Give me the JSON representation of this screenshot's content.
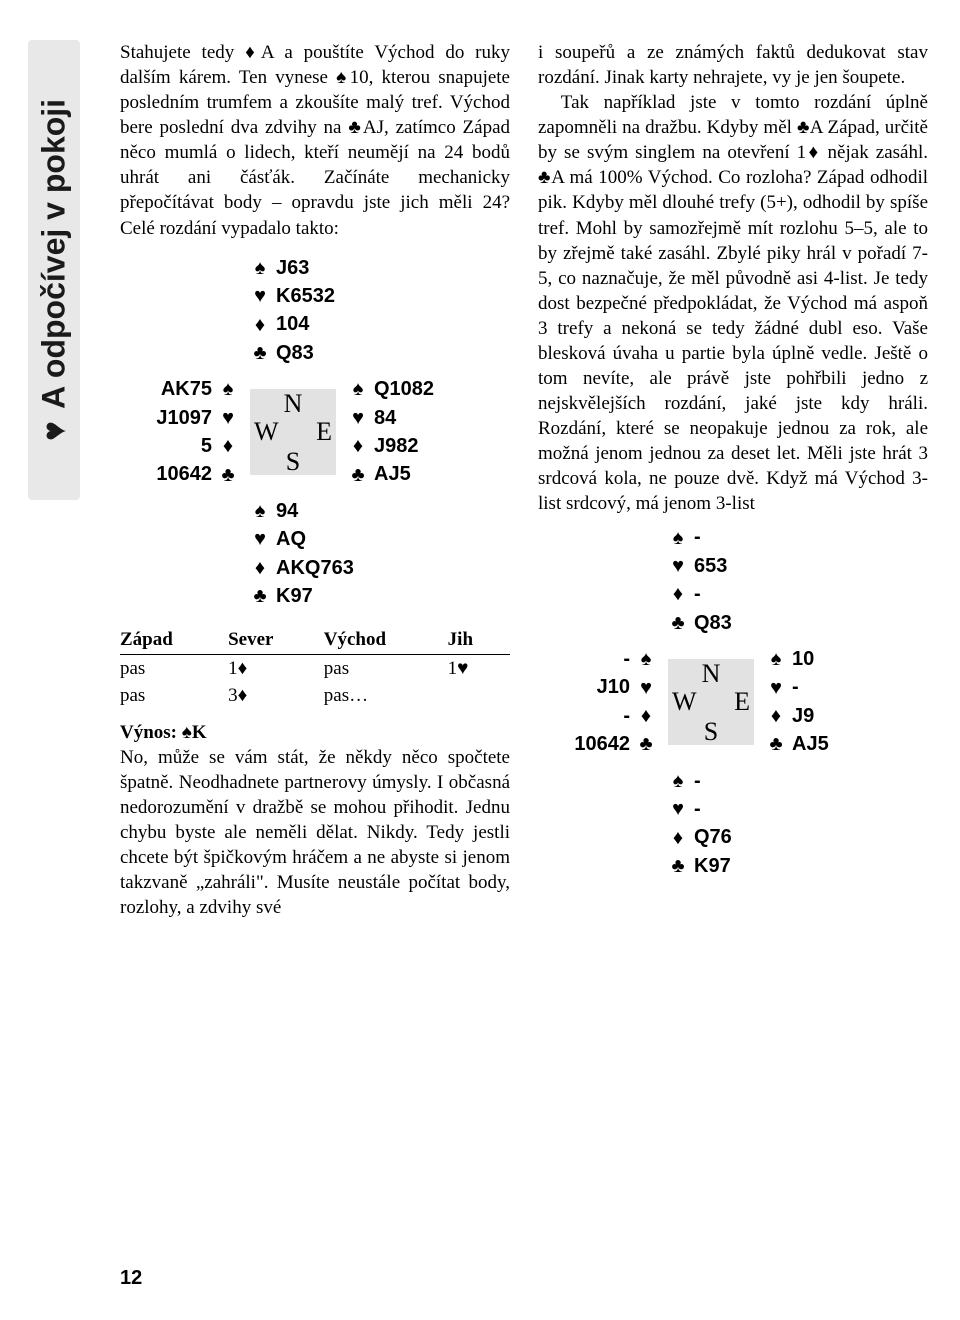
{
  "sidetab": {
    "heart": "♥",
    "text": "A odpočívej v pokoji"
  },
  "suits": {
    "spade": "♠",
    "heart": "♥",
    "diamond": "♦",
    "club": "♣"
  },
  "col1": {
    "para1_parts": [
      "Stahujete tedy ",
      "♦",
      "A a pouštíte Východ do ruky dalším kárem. Ten vynese ",
      "♠",
      "10, kterou snapujete posledním trumfem a zkoušíte malý tref. Východ bere poslední dva zdvihy na ",
      "♣",
      "AJ, zatímco Západ něco mumlá o lidech, kteří neumějí na 24 bodů uhrát ani čásťák. Začínáte mechanicky přepočítávat body – opravdu jste jich měli 24? Celé rozdání vypadalo takto:"
    ],
    "deal": {
      "north": {
        "s": "J63",
        "h": "K6532",
        "d": "104",
        "c": "Q83"
      },
      "west": {
        "s": "AK75",
        "h": "J1097",
        "d": "5",
        "c": "10642"
      },
      "east": {
        "s": "Q1082",
        "h": "84",
        "d": "J982",
        "c": "AJ5"
      },
      "south": {
        "s": "94",
        "h": "AQ",
        "d": "AKQ763",
        "c": "K97"
      }
    },
    "bidding": {
      "headers": [
        "Západ",
        "Sever",
        "Východ",
        "Jih"
      ],
      "rows": [
        [
          "pas",
          "1♦",
          "pas",
          "1♥"
        ],
        [
          "pas",
          "3♦",
          "pas…",
          ""
        ]
      ]
    },
    "lead_label": "Výnos: ",
    "lead_suit": "♠",
    "lead_card": "K",
    "para2": "No, může se vám stát, že někdy něco spočtete špatně. Neodhadnete partnerovy úmysly. I občasná nedorozumění v dražbě se mohou přihodit. Jednu chybu byste ale neměli dělat. Nikdy. Tedy jestli chcete být špičkovým hráčem a ne abyste si jenom takzvaně „zahráli\". Musíte neustále počítat body, rozlohy, a zdvihy své"
  },
  "col2": {
    "para1": "i soupeřů a ze známých faktů dedukovat stav rozdání. Jinak karty nehrajete, vy je jen šoupete.",
    "para2_parts": [
      "Tak například jste v tomto rozdání úplně zapomněli na dražbu. Kdyby měl ",
      "♣",
      "A Západ, určitě by se svým singlem na otevření 1",
      "♦",
      " nějak zasáhl. ",
      "♣",
      "A má 100% Východ. Co rozloha? Západ odhodil pik. Kdyby měl dlouhé trefy (5+), odhodil by spíše tref. Mohl by samozřejmě mít rozlohu 5–5, ale to by zřejmě také zasáhl. Zbylé piky hrál v pořadí 7-5, co naznačuje, že měl původně asi 4-list. Je tedy dost bezpečné předpokládat, že Východ má aspoň 3 trefy a nekoná se tedy žádné dubl eso. Vaše blesková úvaha u partie byla úplně vedle. Ještě o tom nevíte, ale právě jste pohřbili jedno z nejskvělejších rozdání, jaké jste kdy hráli. Rozdání, které se neopakuje jednou za rok, ale možná jenom jednou za deset let. Měli jste hrát 3 srdcová kola, ne pouze dvě. Když má Východ 3-list srdcový, má jenom 3-list"
    ],
    "deal": {
      "north": {
        "s": "-",
        "h": "653",
        "d": "-",
        "c": "Q83"
      },
      "west": {
        "s": "-",
        "h": "J10",
        "d": "-",
        "c": "10642"
      },
      "east": {
        "s": "10",
        "h": "-",
        "d": "J9",
        "c": "AJ5"
      },
      "south": {
        "s": "-",
        "h": "-",
        "d": "Q76",
        "c": "K97"
      }
    }
  },
  "compass": {
    "N": "N",
    "S": "S",
    "E": "E",
    "W": "W"
  },
  "pagenum": "12",
  "colors": {
    "bg": "#ffffff",
    "tab": "#e8e8e8",
    "compass": "#e2e2e2",
    "text": "#000000"
  }
}
